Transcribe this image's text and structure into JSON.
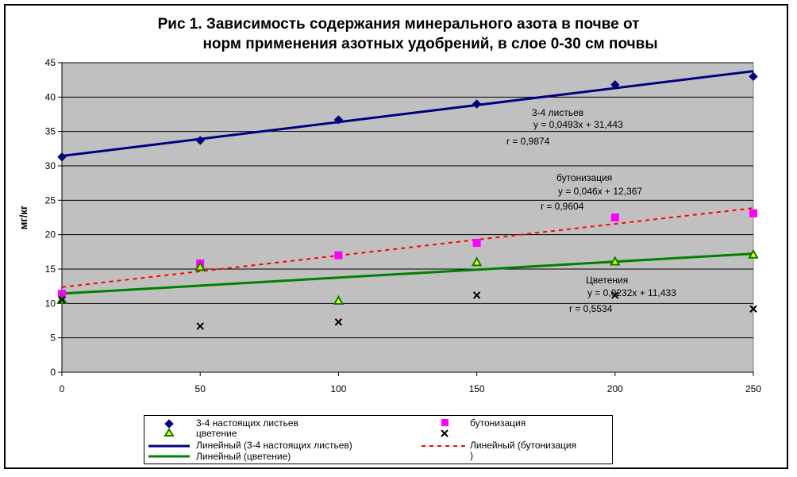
{
  "title_line1": "Рис 1. Зависимость содержания минерального азота в почве от",
  "title_line2": "норм применения азотных удобрений, в слое 0-30 см почвы",
  "colors": {
    "plot_bg": "#c0c0c0",
    "leaves": "#000080",
    "budding": "#ff00ff",
    "flowering": "#008000",
    "flowering_fill": "#ffff00",
    "unlabeled": "#000000",
    "trend_budding": "#ff0000"
  },
  "chart_data": {
    "type": "scatter",
    "ylabel": "мг/кг",
    "xlim": [
      0,
      250
    ],
    "ylim": [
      0,
      45
    ],
    "grid": true,
    "x_ticks": [
      "0",
      "50",
      "100",
      "150",
      "200",
      "250"
    ],
    "y_ticks": [
      "0",
      "5",
      "10",
      "15",
      "20",
      "25",
      "30",
      "35",
      "40",
      "45"
    ],
    "series": [
      {
        "name": "3-4 настоящих листьев",
        "marker": "diamond",
        "x": [
          0,
          50,
          100,
          150,
          200,
          250
        ],
        "y": [
          31.3,
          33.7,
          36.7,
          39.0,
          41.8,
          43.0
        ]
      },
      {
        "name": "бутонизация",
        "marker": "square",
        "x": [
          0,
          50,
          100,
          150,
          200,
          250
        ],
        "y": [
          11.4,
          15.8,
          17.0,
          18.8,
          22.5,
          23.1
        ]
      },
      {
        "name": "цветение",
        "marker": "triangle",
        "x": [
          0,
          50,
          100,
          150,
          200,
          250
        ],
        "y": [
          10.5,
          15.3,
          10.4,
          16.0,
          16.1,
          17.1
        ]
      },
      {
        "marker": "x",
        "x": [
          0,
          50,
          100,
          150,
          200,
          250
        ],
        "y": [
          10.5,
          6.7,
          7.3,
          11.2,
          11.2,
          9.2
        ]
      }
    ],
    "trendlines": [
      {
        "name": "Линейный (3-4 настоящих листьев)",
        "slope": 0.0493,
        "intercept": 31.443,
        "style": "solid"
      },
      {
        "name": "Линейный (бутонизация)",
        "slope": 0.046,
        "intercept": 12.367,
        "style": "dashed"
      },
      {
        "name": "Линейный (цветение)",
        "slope": 0.0232,
        "intercept": 11.433,
        "style": "solid"
      }
    ],
    "annotations": {
      "leaves_name": "3-4 листьев",
      "leaves_eq": "y = 0,0493x + 31,443",
      "leaves_r": "r = 0,9874",
      "budding_name": "бутонизация",
      "budding_eq": "y = 0,046x + 12,367",
      "budding_r": "r = 0,9604",
      "flowering_name": "Цветения",
      "flowering_eq": "y = 0,0232x + 11,433",
      "flowering_r": "r = 0,5534"
    }
  },
  "legend": {
    "s1": "3-4 настоящих листьев",
    "s2": "бутонизация",
    "s3": "цветение",
    "t1": "Линейный (3-4 настоящих листьев)",
    "t2_line1": "Линейный (бутонизация",
    "t2_line2": ")",
    "t3": "Линейный (цветение)"
  }
}
